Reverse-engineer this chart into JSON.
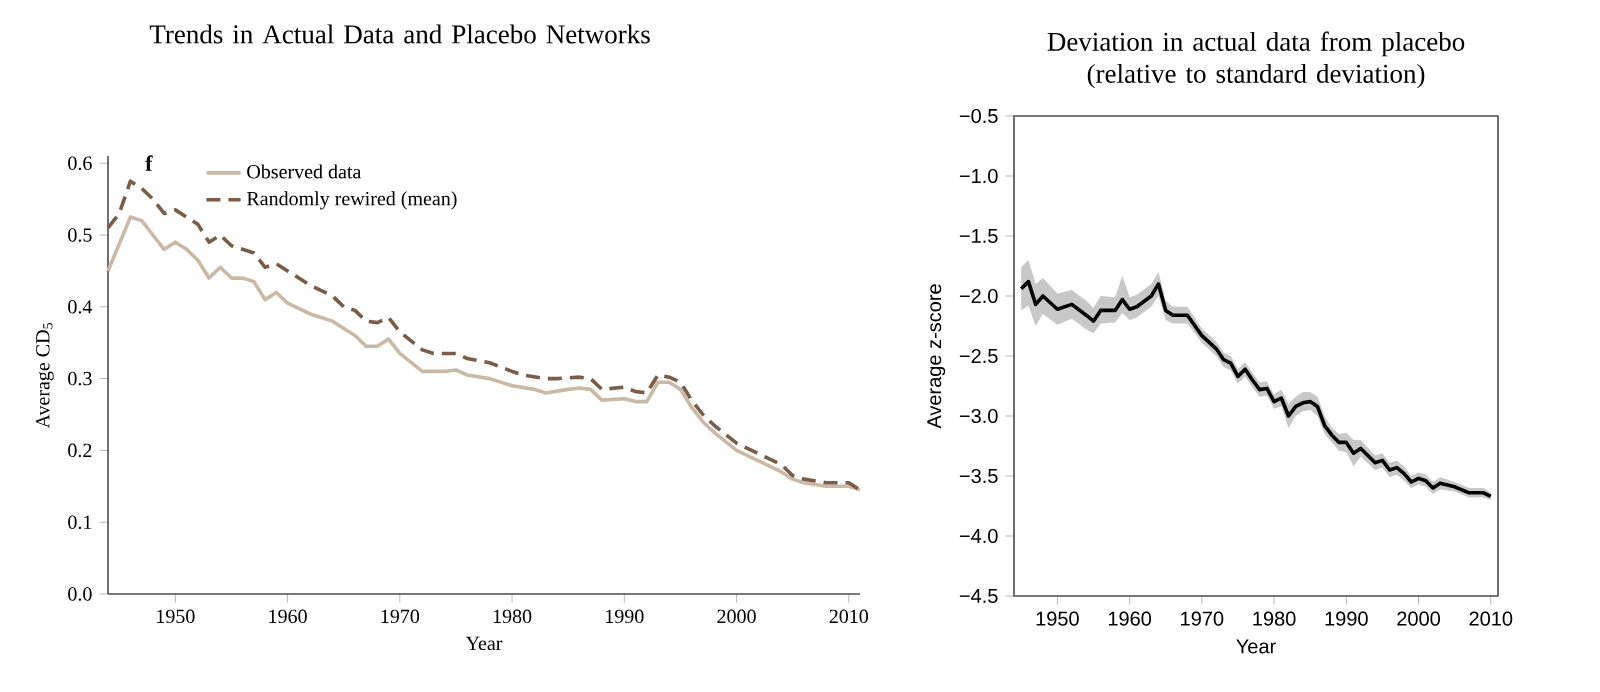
{
  "chart_data": [
    {
      "type": "line",
      "title": "Trends in Actual Data and Placebo Networks",
      "xlabel": "Year",
      "ylabel": "Average CD$_{5}$",
      "annotations": [
        "f"
      ],
      "xlim": [
        1944,
        2011
      ],
      "ylim": [
        0,
        0.61
      ],
      "xticks": [
        1950,
        1960,
        1970,
        1980,
        1990,
        2000,
        2010
      ],
      "yticks": [
        {
          "value": 0,
          "label": "0.0"
        },
        0.1,
        0.2,
        0.3,
        0.4,
        0.5,
        0.6
      ],
      "grid": false,
      "legend": "top left",
      "marker": "none",
      "series": [
        {
          "name": "Observed data",
          "color": "#c9b9a6",
          "line_style": "solid",
          "x": [
            1944,
            1946,
            1947,
            1948,
            1949,
            1950,
            1951,
            1952,
            1953,
            1954,
            1955,
            1956,
            1957,
            1958,
            1959,
            1960,
            1962,
            1964,
            1966,
            1967,
            1968,
            1969,
            1970,
            1972,
            1974,
            1975,
            1976,
            1978,
            1980,
            1982,
            1983,
            1985,
            1986,
            1987,
            1988,
            1990,
            1991,
            1992,
            1993,
            1994,
            1995,
            1996,
            1997,
            1998,
            2000,
            2002,
            2004,
            2005,
            2006,
            2008,
            2010,
            2011
          ],
          "values": [
            0.45,
            0.525,
            0.52,
            0.5,
            0.48,
            0.49,
            0.48,
            0.465,
            0.44,
            0.455,
            0.44,
            0.44,
            0.435,
            0.41,
            0.42,
            0.405,
            0.39,
            0.38,
            0.36,
            0.345,
            0.345,
            0.355,
            0.335,
            0.31,
            0.31,
            0.312,
            0.305,
            0.3,
            0.29,
            0.285,
            0.28,
            0.285,
            0.287,
            0.285,
            0.27,
            0.272,
            0.268,
            0.268,
            0.295,
            0.295,
            0.285,
            0.26,
            0.24,
            0.225,
            0.2,
            0.185,
            0.17,
            0.16,
            0.155,
            0.15,
            0.15,
            0.145
          ]
        },
        {
          "name": "Randomly rewired (mean)",
          "color": "#7a5c48",
          "line_style": "dashed",
          "x": [
            1944,
            1945,
            1946,
            1947,
            1948,
            1949,
            1950,
            1951,
            1952,
            1953,
            1954,
            1955,
            1957,
            1958,
            1959,
            1960,
            1962,
            1964,
            1965,
            1966,
            1967,
            1968,
            1969,
            1970,
            1972,
            1973,
            1975,
            1976,
            1978,
            1980,
            1981,
            1983,
            1984,
            1986,
            1987,
            1988,
            1990,
            1991,
            1992,
            1993,
            1994,
            1995,
            1996,
            1997,
            1998,
            2000,
            2002,
            2004,
            2005,
            2006,
            2008,
            2010,
            2011
          ],
          "values": [
            0.51,
            0.53,
            0.575,
            0.565,
            0.55,
            0.53,
            0.535,
            0.525,
            0.515,
            0.49,
            0.5,
            0.485,
            0.475,
            0.455,
            0.46,
            0.45,
            0.43,
            0.415,
            0.4,
            0.395,
            0.38,
            0.378,
            0.385,
            0.365,
            0.34,
            0.335,
            0.335,
            0.328,
            0.322,
            0.31,
            0.305,
            0.3,
            0.3,
            0.302,
            0.3,
            0.285,
            0.288,
            0.282,
            0.28,
            0.305,
            0.302,
            0.295,
            0.27,
            0.25,
            0.235,
            0.21,
            0.195,
            0.18,
            0.165,
            0.16,
            0.155,
            0.155,
            0.145
          ]
        }
      ]
    },
    {
      "type": "line",
      "title": "Deviation in actual data from placebo (relative to standard deviation)",
      "xlabel": "Year",
      "ylabel": "Average z-score",
      "xlim": [
        1944,
        2011
      ],
      "ylim": [
        -4.5,
        -0.5
      ],
      "xticks": [
        1950,
        1960,
        1970,
        1980,
        1990,
        2000,
        2010
      ],
      "yticks": [
        {
          "value": -4.5,
          "label": "−4.5"
        },
        {
          "value": -4.0,
          "label": "−4.0"
        },
        {
          "value": -3.5,
          "label": "−3.5"
        },
        {
          "value": -3.0,
          "label": "−3.0"
        },
        {
          "value": -2.5,
          "label": "−2.5"
        },
        {
          "value": -2.0,
          "label": "−2.0"
        },
        {
          "value": -1.5,
          "label": "−1.5"
        },
        {
          "value": -1.0,
          "label": "−1.0"
        },
        {
          "value": -0.5,
          "label": "−0.5"
        }
      ],
      "grid": false,
      "legend": false,
      "marker": "none",
      "series": [
        {
          "color": "#000000",
          "line_style": "solid",
          "x": [
            1945,
            1946,
            1947,
            1948,
            1950,
            1952,
            1954,
            1955,
            1956,
            1958,
            1959,
            1960,
            1961,
            1963,
            1964,
            1965,
            1966,
            1968,
            1970,
            1972,
            1973,
            1974,
            1975,
            1976,
            1977,
            1978,
            1979,
            1980,
            1981,
            1982,
            1983,
            1984,
            1985,
            1986,
            1987,
            1988,
            1989,
            1990,
            1991,
            1992,
            1994,
            1995,
            1996,
            1997,
            1998,
            1999,
            2000,
            2001,
            2002,
            2003,
            2005,
            2007,
            2009,
            2010
          ],
          "values": [
            -1.94,
            -1.88,
            -2.07,
            -2.0,
            -2.11,
            -2.07,
            -2.16,
            -2.21,
            -2.12,
            -2.12,
            -2.03,
            -2.11,
            -2.09,
            -2.0,
            -1.9,
            -2.12,
            -2.16,
            -2.16,
            -2.33,
            -2.44,
            -2.53,
            -2.56,
            -2.67,
            -2.61,
            -2.7,
            -2.78,
            -2.77,
            -2.88,
            -2.85,
            -3.0,
            -2.92,
            -2.89,
            -2.88,
            -2.92,
            -3.08,
            -3.16,
            -3.22,
            -3.22,
            -3.31,
            -3.27,
            -3.39,
            -3.37,
            -3.45,
            -3.43,
            -3.48,
            -3.55,
            -3.52,
            -3.54,
            -3.6,
            -3.56,
            -3.59,
            -3.64,
            -3.64,
            -3.67
          ],
          "lower": [
            -2.12,
            -2.08,
            -2.25,
            -2.15,
            -2.24,
            -2.19,
            -2.28,
            -2.31,
            -2.23,
            -2.22,
            -2.14,
            -2.2,
            -2.18,
            -2.09,
            -2.0,
            -2.2,
            -2.23,
            -2.23,
            -2.39,
            -2.5,
            -2.59,
            -2.62,
            -2.73,
            -2.67,
            -2.76,
            -2.84,
            -2.83,
            -2.94,
            -2.92,
            -3.1,
            -3.0,
            -2.96,
            -2.95,
            -3.0,
            -3.15,
            -3.22,
            -3.29,
            -3.3,
            -3.42,
            -3.34,
            -3.45,
            -3.43,
            -3.51,
            -3.49,
            -3.54,
            -3.6,
            -3.57,
            -3.59,
            -3.65,
            -3.61,
            -3.63,
            -3.68,
            -3.68,
            -3.7
          ],
          "upper": [
            -1.76,
            -1.7,
            -1.9,
            -1.85,
            -1.98,
            -1.95,
            -2.04,
            -2.1,
            -2.0,
            -2.01,
            -1.83,
            -2.01,
            -1.99,
            -1.9,
            -1.8,
            -2.04,
            -2.09,
            -2.09,
            -2.27,
            -2.38,
            -2.47,
            -2.5,
            -2.61,
            -2.55,
            -2.64,
            -2.72,
            -2.71,
            -2.82,
            -2.78,
            -2.9,
            -2.84,
            -2.8,
            -2.8,
            -2.84,
            -3.0,
            -3.1,
            -3.15,
            -3.14,
            -3.2,
            -3.2,
            -3.33,
            -3.31,
            -3.39,
            -3.37,
            -3.42,
            -3.5,
            -3.47,
            -3.49,
            -3.55,
            -3.51,
            -3.55,
            -3.6,
            -3.6,
            -3.64
          ]
        }
      ]
    }
  ]
}
